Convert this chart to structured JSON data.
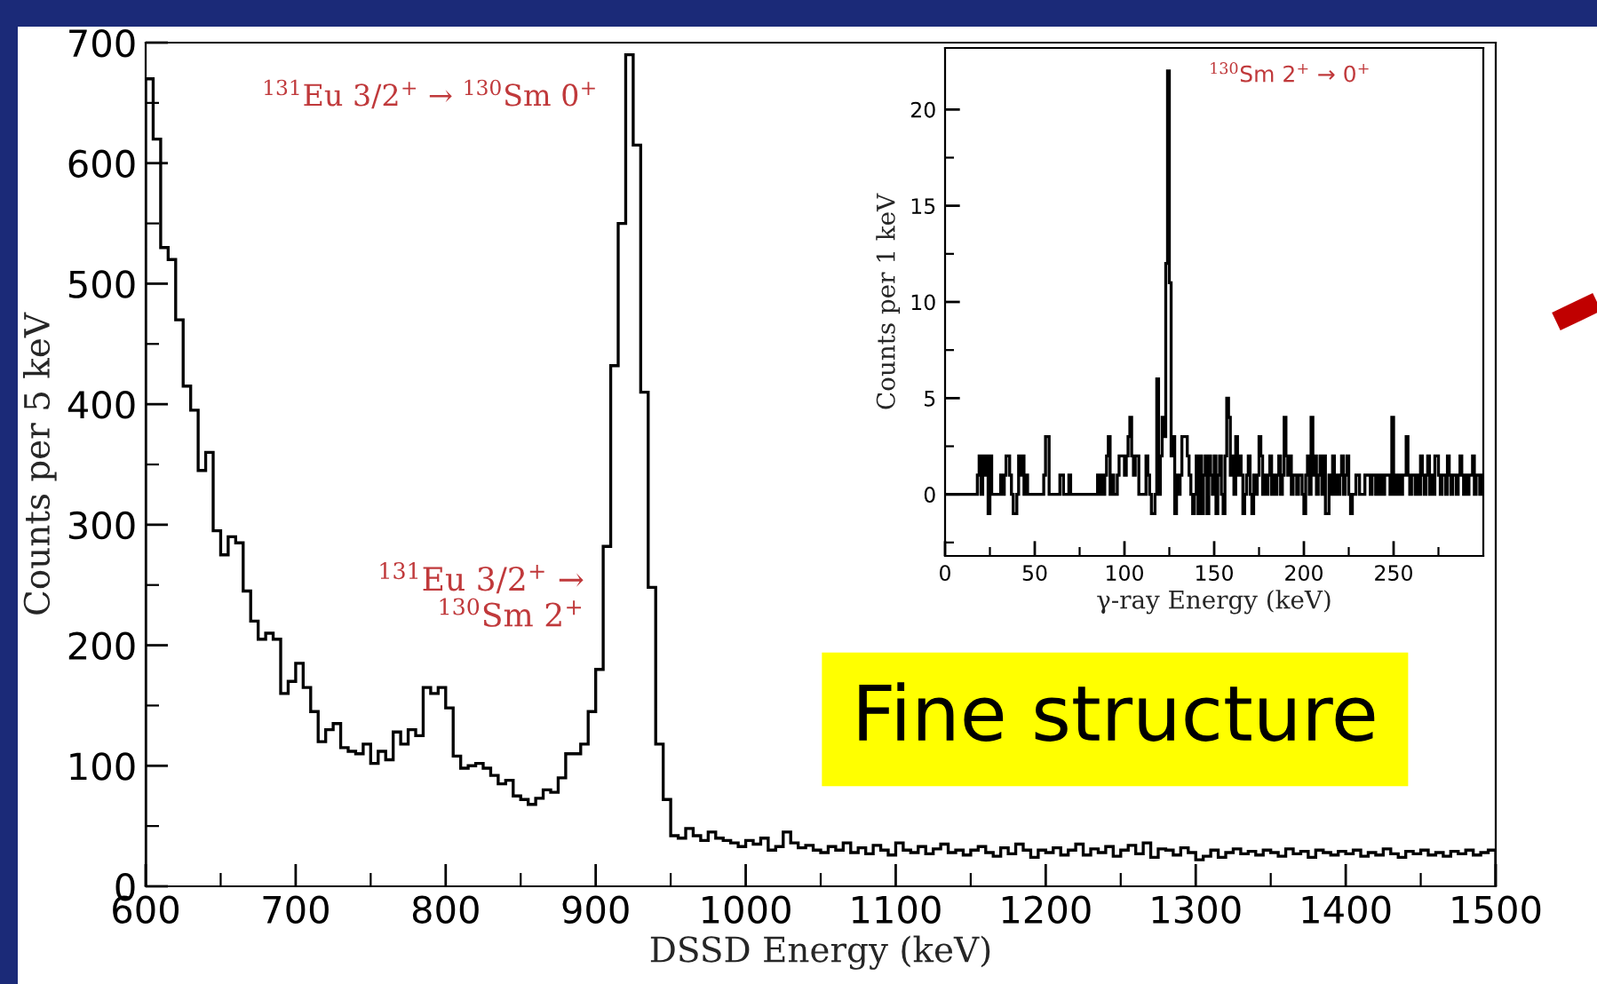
{
  "chart_data": [
    {
      "type": "histogram",
      "xlabel": "DSSD Energy (keV)",
      "ylabel": "Counts per 5 keV",
      "color": "#000000",
      "bins": [
        600,
        605,
        610,
        615,
        620,
        625,
        630,
        635,
        640,
        645,
        650,
        655,
        660,
        665,
        670,
        675,
        680,
        685,
        690,
        695,
        700,
        705,
        710,
        715,
        720,
        725,
        730,
        735,
        740,
        745,
        750,
        755,
        760,
        765,
        770,
        775,
        780,
        785,
        790,
        795,
        800,
        805,
        810,
        815,
        820,
        825,
        830,
        835,
        840,
        845,
        850,
        855,
        860,
        865,
        870,
        875,
        880,
        885,
        890,
        895,
        900,
        905,
        910,
        915,
        920,
        925,
        930,
        935,
        940,
        945,
        950,
        955,
        960,
        965,
        970,
        975,
        980,
        985,
        990,
        995,
        1000,
        1005,
        1010,
        1015,
        1020,
        1025,
        1030,
        1035,
        1040,
        1045,
        1050,
        1055,
        1060,
        1065,
        1070,
        1075,
        1080,
        1085,
        1090,
        1095,
        1100,
        1105,
        1110,
        1115,
        1120,
        1125,
        1130,
        1135,
        1140,
        1145,
        1150,
        1155,
        1160,
        1165,
        1170,
        1175,
        1180,
        1185,
        1190,
        1195,
        1200,
        1205,
        1210,
        1215,
        1220,
        1225,
        1230,
        1235,
        1240,
        1245,
        1250,
        1255,
        1260,
        1265,
        1270,
        1275,
        1280,
        1285,
        1290,
        1295,
        1300,
        1305,
        1310,
        1315,
        1320,
        1325,
        1330,
        1335,
        1340,
        1345,
        1350,
        1355,
        1360,
        1365,
        1370,
        1375,
        1380,
        1385,
        1390,
        1395,
        1400,
        1405,
        1410,
        1415,
        1420,
        1425,
        1430,
        1435,
        1440,
        1445,
        1450,
        1455,
        1460,
        1465,
        1470,
        1475,
        1480,
        1485,
        1490,
        1495,
        1500
      ],
      "values": [
        670,
        620,
        530,
        520,
        470,
        415,
        395,
        345,
        360,
        295,
        275,
        290,
        285,
        245,
        220,
        205,
        210,
        205,
        160,
        170,
        185,
        165,
        145,
        120,
        130,
        135,
        115,
        112,
        110,
        118,
        102,
        112,
        105,
        128,
        118,
        130,
        125,
        165,
        160,
        165,
        148,
        108,
        98,
        100,
        102,
        98,
        92,
        85,
        88,
        75,
        72,
        68,
        73,
        80,
        78,
        90,
        110,
        110,
        118,
        145,
        180,
        282,
        432,
        550,
        690,
        615,
        410,
        248,
        118,
        72,
        42,
        40,
        48,
        42,
        38,
        45,
        40,
        38,
        36,
        33,
        38,
        35,
        40,
        30,
        33,
        45,
        36,
        32,
        34,
        30,
        28,
        33,
        30,
        36,
        28,
        32,
        27,
        34,
        30,
        26,
        36,
        30,
        28,
        33,
        27,
        31,
        35,
        28,
        30,
        26,
        30,
        33,
        28,
        25,
        32,
        27,
        35,
        30,
        24,
        30,
        28,
        32,
        26,
        30,
        35,
        26,
        31,
        28,
        33,
        25,
        30,
        34,
        27,
        36,
        24,
        31,
        30,
        26,
        32,
        28,
        22,
        25,
        30,
        24,
        28,
        31,
        27,
        29,
        26,
        30,
        28,
        25,
        31,
        27,
        29,
        24,
        30,
        28,
        26,
        29,
        27,
        30,
        25,
        28,
        26,
        31,
        27,
        24,
        29,
        27,
        30,
        26,
        28,
        25,
        29,
        27,
        30,
        26,
        28,
        30
      ],
      "xlim": [
        600,
        1500
      ],
      "ylim": [
        0,
        700
      ],
      "xticks": [
        600,
        {
          "value": 650,
          "label": null
        },
        700,
        {
          "value": 750,
          "label": null
        },
        800,
        {
          "value": 850,
          "label": null
        },
        900,
        {
          "value": 950,
          "label": null
        },
        1000,
        {
          "value": 1050,
          "label": null
        },
        1100,
        {
          "value": 1150,
          "label": null
        },
        1200,
        {
          "value": 1250,
          "label": null
        },
        1300,
        {
          "value": 1350,
          "label": null
        },
        1400,
        {
          "value": 1450,
          "label": null
        },
        1500
      ],
      "yticks": [
        0,
        {
          "value": 50,
          "label": null
        },
        100,
        {
          "value": 150,
          "label": null
        },
        200,
        {
          "value": 250,
          "label": null
        },
        300,
        {
          "value": 350,
          "label": null
        },
        400,
        {
          "value": 450,
          "label": null
        },
        500,
        {
          "value": 550,
          "label": null
        },
        600,
        {
          "value": 650,
          "label": null
        },
        700
      ],
      "annotations": [
        "$^{131}$Eu 3/2$^{+}$ → $^{130}$Sm 0$^{+}$",
        "$^{131}$Eu 3/2$^{+}$ →\n$^{130}$Sm 2$^{+}$",
        "Fine structure"
      ]
    },
    {
      "type": "histogram",
      "xlabel": "γ-ray Energy (keV)",
      "ylabel": "Counts per 1 keV",
      "color": "#000000",
      "bins": [
        0,
        1,
        2,
        3,
        4,
        5,
        6,
        7,
        8,
        9,
        10,
        11,
        12,
        13,
        14,
        15,
        16,
        17,
        18,
        19,
        20,
        21,
        22,
        23,
        24,
        25,
        26,
        27,
        28,
        29,
        30,
        31,
        32,
        33,
        34,
        35,
        36,
        37,
        38,
        39,
        40,
        41,
        42,
        43,
        44,
        45,
        46,
        47,
        48,
        49,
        50,
        51,
        52,
        53,
        54,
        55,
        56,
        57,
        58,
        59,
        60,
        61,
        62,
        63,
        64,
        65,
        66,
        67,
        68,
        69,
        70,
        71,
        72,
        73,
        74,
        75,
        76,
        77,
        78,
        79,
        80,
        81,
        82,
        83,
        84,
        85,
        86,
        87,
        88,
        89,
        90,
        91,
        92,
        93,
        94,
        95,
        96,
        97,
        98,
        99,
        100,
        101,
        102,
        103,
        104,
        105,
        106,
        107,
        108,
        109,
        110,
        111,
        112,
        113,
        114,
        115,
        116,
        117,
        118,
        119,
        120,
        121,
        122,
        123,
        124,
        125,
        126,
        127,
        128,
        129,
        130,
        131,
        132,
        133,
        134,
        135,
        136,
        137,
        138,
        139,
        140,
        141,
        142,
        143,
        144,
        145,
        146,
        147,
        148,
        149,
        150,
        151,
        152,
        153,
        154,
        155,
        156,
        157,
        158,
        159,
        160,
        161,
        162,
        163,
        164,
        165,
        166,
        167,
        168,
        169,
        170,
        171,
        172,
        173,
        174,
        175,
        176,
        177,
        178,
        179,
        180,
        181,
        182,
        183,
        184,
        185,
        186,
        187,
        188,
        189,
        190,
        191,
        192,
        193,
        194,
        195,
        196,
        197,
        198,
        199,
        200,
        201,
        202,
        203,
        204,
        205,
        206,
        207,
        208,
        209,
        210,
        211,
        212,
        213,
        214,
        215,
        216,
        217,
        218,
        219,
        220,
        221,
        222,
        223,
        224,
        225,
        226,
        227,
        228,
        229,
        230,
        231,
        232,
        233,
        234,
        235,
        236,
        237,
        238,
        239,
        240,
        241,
        242,
        243,
        244,
        245,
        246,
        247,
        248,
        249,
        250,
        251,
        252,
        253,
        254,
        255,
        256,
        257,
        258,
        259,
        260,
        261,
        262,
        263,
        264,
        265,
        266,
        267,
        268,
        269,
        270,
        271,
        272,
        273,
        274,
        275,
        276,
        277,
        278,
        279,
        280,
        281,
        282,
        283,
        284,
        285,
        286,
        287,
        288,
        289,
        290,
        291,
        292,
        293,
        294,
        295,
        296,
        297,
        298,
        299,
        300
      ],
      "values": [
        0,
        0,
        0,
        0,
        0,
        0,
        0,
        0,
        0,
        0,
        0,
        0,
        0,
        0,
        0,
        0,
        0,
        0,
        1,
        2,
        0,
        2,
        1,
        2,
        -1,
        2,
        0,
        0,
        0,
        0,
        0,
        1,
        0,
        1,
        2,
        2,
        1,
        0,
        -1,
        -1,
        0,
        2,
        1,
        2,
        0,
        1,
        0,
        0,
        0,
        0,
        0,
        0,
        0,
        0,
        0,
        1,
        3,
        3,
        0,
        0,
        0,
        0,
        0,
        0,
        1,
        1,
        0,
        0,
        0,
        1,
        0,
        0,
        0,
        0,
        0,
        0,
        0,
        0,
        0,
        0,
        0,
        0,
        0,
        0,
        0,
        1,
        0,
        1,
        0,
        1,
        2,
        3,
        0,
        1,
        0,
        0,
        1,
        2,
        2,
        2,
        1,
        2,
        3,
        4,
        2,
        1,
        2,
        2,
        0,
        0,
        0,
        0,
        2,
        1,
        0,
        -1,
        -1,
        0,
        6,
        0,
        2,
        4,
        3,
        12,
        22,
        11,
        2,
        3,
        -1,
        1,
        0,
        1,
        3,
        3,
        3,
        2,
        1,
        0,
        -1,
        0,
        2,
        -1,
        2,
        -1,
        1,
        2,
        -1,
        2,
        1,
        0,
        2,
        -1,
        1,
        2,
        0,
        -1,
        2,
        5,
        4,
        1,
        2,
        0,
        3,
        1,
        2,
        1,
        -1,
        0,
        1,
        2,
        0,
        -1,
        1,
        0,
        1,
        3,
        2,
        0,
        1,
        0,
        1,
        2,
        0,
        1,
        0,
        1,
        2,
        0,
        1,
        4,
        2,
        1,
        2,
        0,
        1,
        1,
        0,
        1,
        1,
        0,
        -1,
        1,
        2,
        0,
        4,
        1,
        2,
        0,
        1,
        2,
        0,
        2,
        -1,
        -1,
        1,
        0,
        2,
        0,
        1,
        0,
        1,
        2,
        0,
        1,
        2,
        0,
        -1,
        0,
        0,
        1,
        1,
        0,
        0,
        0,
        1,
        1,
        1,
        0,
        1,
        1,
        0,
        1,
        0,
        1,
        0,
        1,
        1,
        1,
        0,
        4,
        0,
        1,
        0,
        1,
        0,
        1,
        1,
        3,
        1,
        0,
        1,
        1,
        0,
        1,
        0,
        2,
        1,
        0,
        1,
        2,
        0,
        1,
        0,
        2,
        2,
        1,
        0,
        1,
        1,
        0,
        2,
        1,
        0,
        1,
        1,
        0,
        1,
        2,
        1,
        0,
        1,
        0,
        1,
        1,
        2,
        0,
        1,
        1,
        0,
        1
      ],
      "xlim": [
        0,
        300
      ],
      "ylim": [
        -3.2,
        23.2
      ],
      "xticks": [
        0,
        {
          "value": 25,
          "label": null
        },
        50,
        {
          "value": 75,
          "label": null
        },
        100,
        {
          "value": 125,
          "label": null
        },
        150,
        {
          "value": 175,
          "label": null
        },
        200,
        {
          "value": 225,
          "label": null
        },
        250,
        {
          "value": 275,
          "label": null
        }
      ],
      "yticks": [
        {
          "value": -2.5,
          "label": null
        },
        0,
        {
          "value": 2.5,
          "label": null
        },
        5,
        {
          "value": 7.5,
          "label": null
        },
        10,
        {
          "value": 12.5,
          "label": null
        },
        15,
        {
          "value": 17.5,
          "label": null
        },
        20
      ],
      "annotations": [
        "$^{130}$Sm 2$^{+}$ → 0$^{+}$"
      ]
    }
  ]
}
